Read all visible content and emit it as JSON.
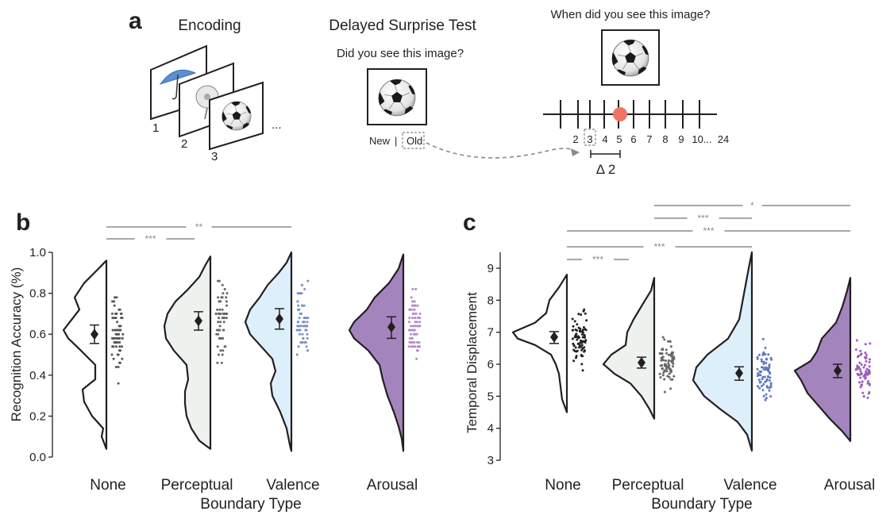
{
  "panel_a": {
    "label": "a",
    "encoding": {
      "title": "Encoding",
      "frames": [
        "1",
        "2",
        "3"
      ],
      "ellipsis": "..."
    },
    "test": {
      "title": "Delayed Surprise Test",
      "question": "Did you see this image?",
      "new": "New",
      "sep": "|",
      "old": "Old"
    },
    "temporal": {
      "question": "When did you see this image?",
      "ticks": [
        "2",
        "3",
        "4",
        "5",
        "6",
        "7",
        "8",
        "9",
        "10...",
        "24"
      ],
      "delta": "Δ 2"
    }
  },
  "chart_data": [
    {
      "type": "violin",
      "panel": "b",
      "xlabel": "Boundary Type",
      "ylabel": "Recognition Accuracy (%)",
      "ylim": [
        0.0,
        1.0
      ],
      "yticks": [
        "0.0",
        "0.2",
        "0.4",
        "0.6",
        "0.8",
        "1.0"
      ],
      "categories": [
        "None",
        "Perceptual",
        "Valence",
        "Arousal"
      ],
      "colors": [
        "#ffffff",
        "#edf2ef",
        "#ddeffb",
        "#a484bd"
      ],
      "dot_colors": [
        "#555555",
        "#666666",
        "#7b8fc4",
        "#b48ac8"
      ],
      "means": [
        0.6,
        0.665,
        0.675,
        0.635
      ],
      "ci": [
        [
          0.555,
          0.645
        ],
        [
          0.62,
          0.71
        ],
        [
          0.625,
          0.725
        ],
        [
          0.58,
          0.685
        ]
      ],
      "comparisons": [
        {
          "pair": [
            "None",
            "Perceptual"
          ],
          "label": "***"
        },
        {
          "pair": [
            "None",
            "Valence"
          ],
          "label": "**"
        }
      ]
    },
    {
      "type": "violin",
      "panel": "c",
      "xlabel": "Boundary Type",
      "ylabel": "Temporal Displacement",
      "ylim": [
        3,
        9.5
      ],
      "yticks": [
        "3",
        "4",
        "5",
        "6",
        "7",
        "8",
        "9"
      ],
      "categories": [
        "None",
        "Perceptual",
        "Valence",
        "Arousal"
      ],
      "colors": [
        "#ffffff",
        "#edf2ef",
        "#ddeffb",
        "#a484bd"
      ],
      "dot_colors": [
        "#222222",
        "#666666",
        "#5a78c0",
        "#9b5cc0"
      ],
      "means": [
        6.85,
        6.05,
        5.72,
        5.8
      ],
      "ci": [
        [
          6.65,
          7.02
        ],
        [
          5.88,
          6.22
        ],
        [
          5.5,
          5.92
        ],
        [
          5.58,
          6.0
        ]
      ],
      "comparisons": [
        {
          "pair": [
            "Perceptual",
            "Arousal"
          ],
          "label": "*"
        },
        {
          "pair": [
            "Perceptual",
            "Valence"
          ],
          "label": "***"
        },
        {
          "pair": [
            "None",
            "Arousal"
          ],
          "label": "***"
        },
        {
          "pair": [
            "None",
            "Valence"
          ],
          "label": "***"
        },
        {
          "pair": [
            "None",
            "Perceptual"
          ],
          "label": "***"
        }
      ]
    }
  ]
}
